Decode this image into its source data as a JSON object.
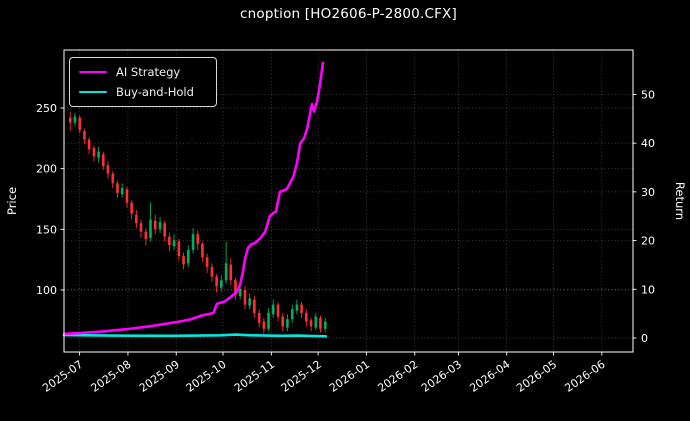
{
  "title": "cnoption [HO2606-P-2800.CFX]",
  "colors": {
    "background": "#000000",
    "text": "#ffffff",
    "grid": "#8f8f8f",
    "spine": "#ffffff",
    "ai_strategy": "#ff00ff",
    "buy_and_hold": "#00e8e0",
    "candle_up": "#00b060",
    "candle_down": "#fe3032"
  },
  "legend": [
    {
      "label": "AI Strategy",
      "color": "#ff00ff"
    },
    {
      "label": "Buy-and-Hold",
      "color": "#00e8e0"
    }
  ],
  "chart_data": {
    "type": "candlestick+line",
    "title": "cnoption [HO2606-P-2800.CFX]",
    "grid": "dotted, both axes",
    "legend_position": "upper-left",
    "x_axis": {
      "tick_labels": [
        "2025-07",
        "2025-08",
        "2025-09",
        "2025-10",
        "2025-11",
        "2025-12",
        "2026-01",
        "2026-02",
        "2026-03",
        "2026-04",
        "2026-05",
        "2026-06"
      ],
      "tick_days": [
        0,
        31,
        62,
        92,
        123,
        153,
        184,
        215,
        243,
        274,
        304,
        335
      ],
      "range_days": [
        -10,
        355
      ],
      "label_rotation_deg": 35
    },
    "price_axis": {
      "label": "Price",
      "side": "left",
      "ticks": [
        100,
        150,
        200,
        250
      ],
      "range": [
        48.9,
        297.8
      ]
    },
    "return_axis": {
      "label": "Return",
      "side": "right",
      "ticks": [
        0,
        10,
        20,
        30,
        40,
        50
      ],
      "range": [
        -2.875,
        59.125
      ]
    },
    "candles_format": "[day, open, high, low, close]",
    "candles": [
      [
        -6.0,
        242,
        247,
        231,
        238
      ],
      [
        -3.0,
        238,
        246,
        235,
        243
      ],
      [
        0.1,
        242,
        244,
        229,
        232
      ],
      [
        3.1,
        231,
        233,
        220,
        224
      ],
      [
        6.1,
        224,
        226,
        212,
        216
      ],
      [
        9.2,
        217,
        219,
        206,
        210
      ],
      [
        12.2,
        209,
        218,
        205,
        214
      ],
      [
        15.2,
        212,
        214,
        199,
        202
      ],
      [
        18.2,
        203,
        206,
        192,
        196
      ],
      [
        21.3,
        196,
        198,
        184,
        188
      ],
      [
        24.3,
        188,
        190,
        176,
        180
      ],
      [
        27.3,
        179,
        188,
        176,
        184
      ],
      [
        30.4,
        183,
        185,
        168,
        172
      ],
      [
        33.4,
        172,
        174,
        158,
        163
      ],
      [
        36.4,
        162,
        166,
        151,
        155
      ],
      [
        39.4,
        155,
        158,
        143,
        148
      ],
      [
        42.5,
        148,
        151,
        137,
        142
      ],
      [
        45.5,
        143,
        172,
        140,
        158
      ],
      [
        48.5,
        157,
        162,
        146,
        150
      ],
      [
        51.6,
        150,
        160,
        147,
        156
      ],
      [
        54.6,
        155,
        157,
        140,
        144
      ],
      [
        57.6,
        144,
        147,
        132,
        137
      ],
      [
        60.6,
        136,
        146,
        133,
        141
      ],
      [
        63.7,
        140,
        142,
        124,
        128
      ],
      [
        66.7,
        128,
        131,
        117,
        121
      ],
      [
        69.7,
        122,
        137,
        119,
        133
      ],
      [
        72.8,
        133,
        151,
        130,
        146
      ],
      [
        75.8,
        146,
        149,
        133,
        138
      ],
      [
        78.8,
        138,
        140,
        123,
        127
      ],
      [
        81.8,
        127,
        130,
        114,
        119
      ],
      [
        84.9,
        119,
        122,
        107,
        111
      ],
      [
        87.9,
        111,
        113,
        98,
        103
      ],
      [
        90.9,
        102,
        112,
        99,
        108
      ],
      [
        94.0,
        108,
        140,
        105,
        122
      ],
      [
        97.0,
        121,
        126,
        104,
        108
      ],
      [
        100.0,
        108,
        110,
        92,
        96
      ],
      [
        103.0,
        95,
        106,
        92,
        101
      ],
      [
        106.1,
        100,
        103,
        84,
        88
      ],
      [
        109.1,
        87,
        97,
        84,
        93
      ],
      [
        112.1,
        92,
        95,
        77,
        81
      ],
      [
        115.2,
        81,
        84,
        69,
        73
      ],
      [
        118.2,
        74,
        77,
        64,
        68
      ],
      [
        121.2,
        68,
        85,
        66,
        81
      ],
      [
        124.2,
        80,
        92,
        77,
        88
      ],
      [
        127.3,
        88,
        90,
        74,
        78
      ],
      [
        130.3,
        78,
        81,
        66,
        70
      ],
      [
        133.3,
        69,
        80,
        66,
        76
      ],
      [
        136.4,
        76,
        88,
        73,
        84
      ],
      [
        139.4,
        83,
        92,
        80,
        88
      ],
      [
        142.4,
        88,
        90,
        77,
        81
      ],
      [
        145.4,
        81,
        84,
        70,
        74
      ],
      [
        148.5,
        75,
        77,
        66,
        70
      ],
      [
        151.5,
        69,
        81,
        67,
        78
      ],
      [
        154.5,
        77,
        79,
        65,
        68
      ],
      [
        157.6,
        68,
        77,
        65,
        74
      ]
    ],
    "series": [
      {
        "name": "AI Strategy",
        "axis": "return",
        "format": "[day, return]",
        "points": [
          [
            -10,
            0.85
          ],
          [
            0,
            1.0
          ],
          [
            13,
            1.3
          ],
          [
            30,
            1.8
          ],
          [
            45,
            2.4
          ],
          [
            61,
            3.2
          ],
          [
            71,
            3.8
          ],
          [
            78,
            4.6
          ],
          [
            84,
            5.0
          ],
          [
            86,
            5.2
          ],
          [
            88,
            7.0
          ],
          [
            93,
            7.5
          ],
          [
            96,
            8.2
          ],
          [
            101,
            9.5
          ],
          [
            103,
            11
          ],
          [
            105,
            14
          ],
          [
            106,
            16
          ],
          [
            108,
            18.5
          ],
          [
            110,
            19.2
          ],
          [
            113,
            19.6
          ],
          [
            116,
            20.5
          ],
          [
            119,
            21.8
          ],
          [
            122,
            25
          ],
          [
            124,
            25.6
          ],
          [
            126,
            26
          ],
          [
            128.5,
            30
          ],
          [
            131,
            30.3
          ],
          [
            133,
            30.6
          ],
          [
            137,
            33
          ],
          [
            139.5,
            36
          ],
          [
            141.5,
            40
          ],
          [
            144,
            41
          ],
          [
            146,
            43
          ],
          [
            147.8,
            46
          ],
          [
            149.1,
            48
          ],
          [
            150.4,
            46.5
          ],
          [
            152.3,
            48.5
          ],
          [
            154.2,
            52
          ],
          [
            156.1,
            56.5
          ]
        ]
      },
      {
        "name": "Buy-and-Hold",
        "axis": "return",
        "format": "[day, return]",
        "points": [
          [
            -10,
            0.6
          ],
          [
            20,
            0.5
          ],
          [
            60,
            0.45
          ],
          [
            90,
            0.55
          ],
          [
            100,
            0.7
          ],
          [
            110,
            0.55
          ],
          [
            120,
            0.5
          ],
          [
            130,
            0.45
          ],
          [
            140,
            0.5
          ],
          [
            150,
            0.4
          ],
          [
            158,
            0.35
          ]
        ]
      }
    ]
  }
}
